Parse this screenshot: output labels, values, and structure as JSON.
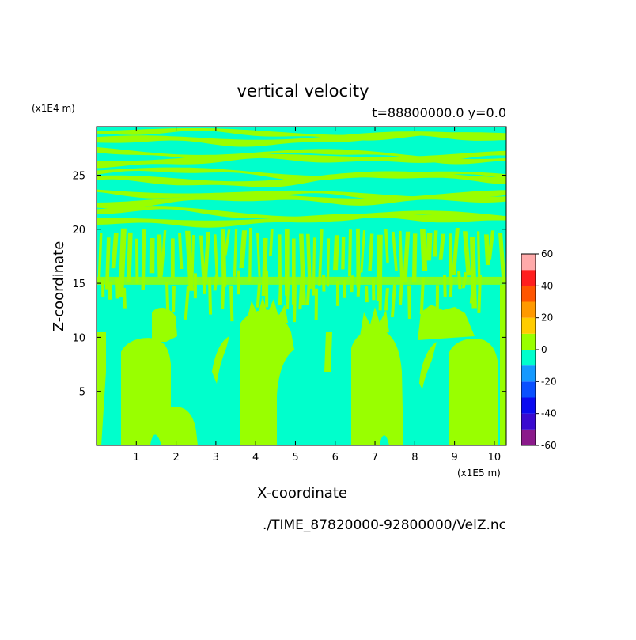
{
  "chart_data": {
    "type": "heatmap",
    "title": "vertical velocity",
    "subtitle": "t=88800000.0 y=0.0",
    "xlabel": "X-coordinate",
    "ylabel": "Z-coordinate",
    "x_unit": "(x1E5 m)",
    "y_unit": "(x1E4 m)",
    "xlim": [
      0,
      10.3
    ],
    "ylim": [
      0,
      29.5
    ],
    "x_ticks": [
      "1",
      "2",
      "3",
      "4",
      "5",
      "6",
      "7",
      "8",
      "9",
      "10"
    ],
    "y_ticks": [
      "5",
      "10",
      "15",
      "20",
      "25"
    ],
    "colorbar": {
      "levels": [
        -60,
        -50,
        -40,
        -30,
        -20,
        -10,
        0,
        10,
        20,
        30,
        40,
        50,
        60
      ],
      "labels": [
        "60",
        "40",
        "20",
        "0",
        "-20",
        "-40",
        "-60"
      ],
      "colors": [
        "#8b1a8b",
        "#3a0ad0",
        "#0a0af0",
        "#0a50ff",
        "#1499ff",
        "#00ffcc",
        "#99ff00",
        "#ffcc00",
        "#ff9900",
        "#ff5500",
        "#ff1e1e",
        "#ffaaaa"
      ]
    },
    "field_colors": {
      "background_negative": "#00ffcc",
      "positive": "#99ff00"
    },
    "source": "./TIME_87820000-92800000/VelZ.nc"
  }
}
